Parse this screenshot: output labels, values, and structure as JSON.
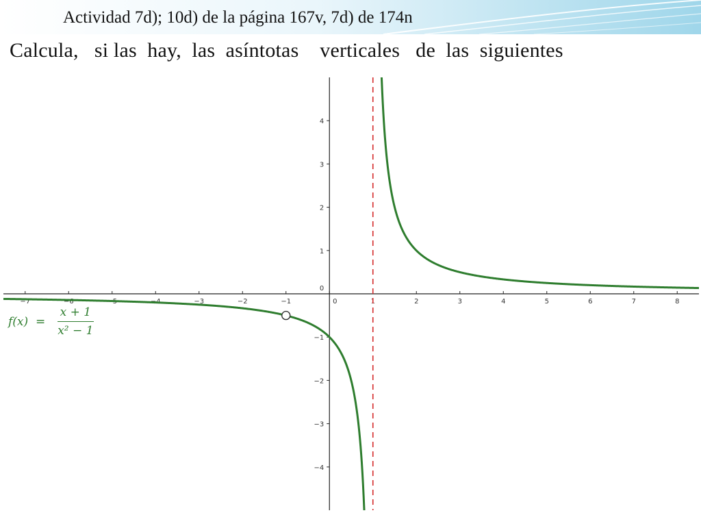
{
  "slide": {
    "title_line1": "Actividad 7d); 10d) de la página 167v, 7d) de 174n",
    "title_line2": "Calcula,   si las  hay,  las  asíntotas    verticales   de  las  siguientes"
  },
  "formula": {
    "lhs": "f(x)  =",
    "numerator": "x + 1",
    "denominator": "x² − 1"
  },
  "colors": {
    "curve": "#2e7d2e",
    "asymptote": "#d42a2a",
    "axes": "#222222"
  },
  "chart_data": {
    "type": "line",
    "function": "(x+1)/(x^2-1)",
    "xlim": [
      -7.5,
      8.5
    ],
    "ylim": [
      -5,
      5
    ],
    "x_ticks": [
      -7,
      -6,
      -5,
      -4,
      -3,
      -2,
      -1,
      0,
      1,
      2,
      3,
      4,
      5,
      6,
      7,
      8
    ],
    "y_ticks": [
      -4,
      -3,
      -2,
      -1,
      0,
      1,
      2,
      3,
      4
    ],
    "vertical_asymptote": 1,
    "hole": {
      "x": -1,
      "y": -0.5
    },
    "grid": false
  }
}
